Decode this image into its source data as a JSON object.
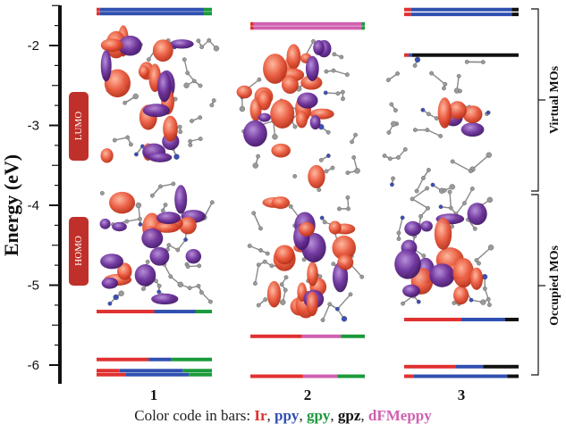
{
  "y_axis": {
    "label": "Energy (eV)",
    "ticks": [
      "-2",
      "-3",
      "-4",
      "-5",
      "-6"
    ],
    "range": [
      -1.5,
      -6.2
    ]
  },
  "columns": [
    "1",
    "2",
    "3"
  ],
  "region_labels": {
    "virtual": "Virtual MOs",
    "occupied": "Occupied MOs"
  },
  "badges": {
    "lumo": "LUMO",
    "homo": "HOMO"
  },
  "legend": {
    "prefix": "Color code in bars: ",
    "items": [
      {
        "label": "Ir",
        "color": "#e03030"
      },
      {
        "label": "ppy",
        "color": "#3050b0"
      },
      {
        "label": "gpy",
        "color": "#1a9a3a"
      },
      {
        "label": "gpz",
        "color": "#111111"
      },
      {
        "label": "dFMeppy",
        "color": "#d060b0"
      }
    ]
  },
  "colors": {
    "Ir": "#e03030",
    "ppy": "#3050b0",
    "gpy": "#1a9a3a",
    "gpz": "#111111",
    "dFMeppy": "#d060b0",
    "badge": "#c0302a",
    "lobe_pos": "#e8563a",
    "lobe_neg": "#6a2f9a"
  },
  "chart_data": {
    "type": "energy-level-diagram",
    "ylabel": "Energy (eV)",
    "ylim": [
      -1.5,
      -6.2
    ],
    "columns": [
      {
        "name": "1",
        "levels": [
          {
            "energy": -1.55,
            "composition": {
              "Ir": 0.03,
              "ppy": 0.9,
              "gpy": 0.07
            }
          },
          {
            "energy": -1.6,
            "composition": {
              "Ir": 0.03,
              "ppy": 0.9,
              "gpy": 0.07
            }
          },
          {
            "energy": -5.33,
            "composition": {
              "Ir": 0.5,
              "ppy": 0.36,
              "gpy": 0.14
            }
          },
          {
            "energy": -5.93,
            "composition": {
              "Ir": 0.45,
              "ppy": 0.2,
              "gpy": 0.35
            }
          },
          {
            "energy": -6.07,
            "composition": {
              "Ir": 0.2,
              "ppy": 0.55,
              "gpy": 0.25
            }
          },
          {
            "energy": -6.12,
            "composition": {
              "Ir": 0.25,
              "ppy": 0.55,
              "gpy": 0.2
            }
          }
        ]
      },
      {
        "name": "2",
        "levels": [
          {
            "energy": -1.73,
            "composition": {
              "Ir": 0.03,
              "dFMeppy": 0.94,
              "gpy": 0.03
            }
          },
          {
            "energy": -1.78,
            "composition": {
              "Ir": 0.03,
              "dFMeppy": 0.94,
              "gpy": 0.03
            }
          },
          {
            "energy": -5.64,
            "composition": {
              "Ir": 0.45,
              "dFMeppy": 0.34,
              "gpy": 0.21
            }
          },
          {
            "energy": -6.14,
            "composition": {
              "Ir": 0.46,
              "dFMeppy": 0.3,
              "gpy": 0.24
            }
          }
        ]
      },
      {
        "name": "3",
        "levels": [
          {
            "energy": -1.55,
            "composition": {
              "Ir": 0.06,
              "ppy": 0.88,
              "gpz": 0.06
            }
          },
          {
            "energy": -1.61,
            "composition": {
              "Ir": 0.06,
              "ppy": 0.88,
              "gpz": 0.06
            }
          },
          {
            "energy": -2.12,
            "composition": {
              "Ir": 0.04,
              "ppy": 0.03,
              "gpz": 0.93
            }
          },
          {
            "energy": -5.43,
            "composition": {
              "Ir": 0.5,
              "ppy": 0.38,
              "gpz": 0.12
            }
          },
          {
            "energy": -6.02,
            "composition": {
              "Ir": 0.45,
              "ppy": 0.24,
              "gpz": 0.31
            }
          },
          {
            "energy": -6.14,
            "composition": {
              "Ir": 0.08,
              "ppy": 0.82,
              "gpz": 0.1
            }
          }
        ]
      }
    ]
  }
}
